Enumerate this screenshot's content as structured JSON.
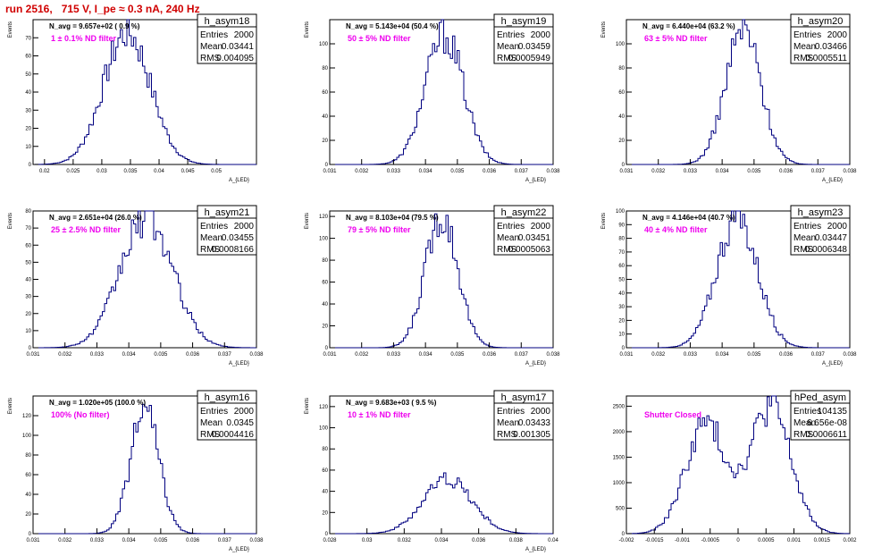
{
  "page_title": "run 2516,   715 V, I_pe ≈ 0.3 nA, 240 Hz",
  "colors": {
    "title": "#d00000",
    "annotation": "#ee00ee",
    "histogram_line": "#000080",
    "axis": "#000000",
    "background": "#ffffff"
  },
  "chart_data": [
    {
      "type": "bar",
      "name": "h_asym18",
      "stats": {
        "entries": "2000",
        "mean": "0.03441",
        "rms": "0.004095"
      },
      "n_avg_text": "N_avg = 9.657e+02 ( 0.9 %)",
      "filter_text": "1 ± 0.1% ND filter",
      "ylabel": "Events",
      "xlabel": "A_{LED}",
      "xlim": [
        0.018,
        0.057
      ],
      "ylim": [
        0,
        80
      ],
      "xticks": [
        0.02,
        0.025,
        0.03,
        0.035,
        0.04,
        0.045,
        0.05
      ],
      "xtick_labels": [
        "0.02",
        "0.025",
        "0.03",
        "0.035",
        "0.04",
        "0.045",
        "0.05"
      ],
      "yticks": [
        0,
        10,
        20,
        30,
        40,
        50,
        60,
        70
      ],
      "ytick_labels": [
        "0",
        "10",
        "20",
        "30",
        "40",
        "50",
        "60",
        "70"
      ],
      "mean": 0.03441,
      "sigma": 0.004095,
      "peak": 73
    },
    {
      "type": "bar",
      "name": "h_asym19",
      "stats": {
        "entries": "2000",
        "mean": "0.03459",
        "rms": "0.0005949"
      },
      "n_avg_text": "N_avg = 5.143e+04 (50.4 %)",
      "filter_text": "50 ± 5% ND filter",
      "ylabel": "Events",
      "xlabel": "A_{LED}",
      "xlim": [
        0.031,
        0.038
      ],
      "ylim": [
        0,
        120
      ],
      "xticks": [
        0.031,
        0.032,
        0.033,
        0.034,
        0.035,
        0.036,
        0.037,
        0.038
      ],
      "xtick_labels": [
        "0.031",
        "0.032",
        "0.033",
        "0.034",
        "0.035",
        "0.036",
        "0.037",
        "0.038"
      ],
      "yticks": [
        0,
        20,
        40,
        60,
        80,
        100
      ],
      "ytick_labels": [
        "0",
        "20",
        "40",
        "60",
        "80",
        "100"
      ],
      "mean": 0.03459,
      "sigma": 0.0005949,
      "peak": 108
    },
    {
      "type": "bar",
      "name": "h_asym20",
      "stats": {
        "entries": "2000",
        "mean": "0.03466",
        "rms": "0.0005511"
      },
      "n_avg_text": "N_avg = 6.440e+04 (63.2 %)",
      "filter_text": "63 ± 5% ND filter",
      "ylabel": "Events",
      "xlabel": "A_{LED}",
      "xlim": [
        0.031,
        0.038
      ],
      "ylim": [
        0,
        120
      ],
      "xticks": [
        0.031,
        0.032,
        0.033,
        0.034,
        0.035,
        0.036,
        0.037,
        0.038
      ],
      "xtick_labels": [
        "0.031",
        "0.032",
        "0.033",
        "0.034",
        "0.035",
        "0.036",
        "0.037",
        "0.038"
      ],
      "yticks": [
        0,
        20,
        40,
        60,
        80,
        100
      ],
      "ytick_labels": [
        "0",
        "20",
        "40",
        "60",
        "80",
        "100"
      ],
      "mean": 0.03466,
      "sigma": 0.0005511,
      "peak": 112
    },
    {
      "type": "bar",
      "name": "h_asym21",
      "stats": {
        "entries": "2000",
        "mean": "0.03455",
        "rms": "0.0008166"
      },
      "n_avg_text": "N_avg = 2.651e+04 (26.0 %)",
      "filter_text": "25 ± 2.5% ND filter",
      "ylabel": "Events",
      "xlabel": "A_{LED}",
      "xlim": [
        0.031,
        0.038
      ],
      "ylim": [
        0,
        80
      ],
      "xticks": [
        0.031,
        0.032,
        0.033,
        0.034,
        0.035,
        0.036,
        0.037,
        0.038
      ],
      "xtick_labels": [
        "0.031",
        "0.032",
        "0.033",
        "0.034",
        "0.035",
        "0.036",
        "0.037",
        "0.038"
      ],
      "yticks": [
        0,
        10,
        20,
        30,
        40,
        50,
        60,
        70,
        80
      ],
      "ytick_labels": [
        "0",
        "10",
        "20",
        "30",
        "40",
        "50",
        "60",
        "70",
        "80"
      ],
      "mean": 0.03455,
      "sigma": 0.0008166,
      "peak": 76
    },
    {
      "type": "bar",
      "name": "h_asym22",
      "stats": {
        "entries": "2000",
        "mean": "0.03451",
        "rms": "0.0005063"
      },
      "n_avg_text": "N_avg = 8.103e+04 (79.5 %)",
      "filter_text": "79 ± 5% ND filter",
      "ylabel": "Events",
      "xlabel": "A_{LED}",
      "xlim": [
        0.031,
        0.038
      ],
      "ylim": [
        0,
        125
      ],
      "xticks": [
        0.031,
        0.032,
        0.033,
        0.034,
        0.035,
        0.036,
        0.037,
        0.038
      ],
      "xtick_labels": [
        "0.031",
        "0.032",
        "0.033",
        "0.034",
        "0.035",
        "0.036",
        "0.037",
        "0.038"
      ],
      "yticks": [
        0,
        20,
        40,
        60,
        80,
        100,
        120
      ],
      "ytick_labels": [
        "0",
        "20",
        "40",
        "60",
        "80",
        "100",
        "120"
      ],
      "mean": 0.03451,
      "sigma": 0.0005063,
      "peak": 122
    },
    {
      "type": "bar",
      "name": "h_asym23",
      "stats": {
        "entries": "2000",
        "mean": "0.03447",
        "rms": "0.0006348"
      },
      "n_avg_text": "N_avg = 4.146e+04 (40.7 %)",
      "filter_text": "40 ± 4% ND filter",
      "ylabel": "Events",
      "xlabel": "A_{LED}",
      "xlim": [
        0.031,
        0.038
      ],
      "ylim": [
        0,
        100
      ],
      "xticks": [
        0.031,
        0.032,
        0.033,
        0.034,
        0.035,
        0.036,
        0.037,
        0.038
      ],
      "xtick_labels": [
        "0.031",
        "0.032",
        "0.033",
        "0.034",
        "0.035",
        "0.036",
        "0.037",
        "0.038"
      ],
      "yticks": [
        0,
        10,
        20,
        30,
        40,
        50,
        60,
        70,
        80,
        90,
        100
      ],
      "ytick_labels": [
        "0",
        "10",
        "20",
        "30",
        "40",
        "50",
        "60",
        "70",
        "80",
        "90",
        "100"
      ],
      "mean": 0.03447,
      "sigma": 0.0006348,
      "peak": 96
    },
    {
      "type": "bar",
      "name": "h_asym16",
      "stats": {
        "entries": "2000",
        "mean": "0.0345",
        "rms": "0.0004416"
      },
      "n_avg_text": "N_avg = 1.020e+05 (100.0 %)",
      "filter_text": "100% (No filter)",
      "ylabel": "Events",
      "xlabel": "A_{LED}",
      "xlim": [
        0.031,
        0.038
      ],
      "ylim": [
        0,
        140
      ],
      "xticks": [
        0.031,
        0.032,
        0.033,
        0.034,
        0.035,
        0.036,
        0.037,
        0.038
      ],
      "xtick_labels": [
        "0.031",
        "0.032",
        "0.033",
        "0.034",
        "0.035",
        "0.036",
        "0.037",
        "0.038"
      ],
      "yticks": [
        0,
        20,
        40,
        60,
        80,
        100,
        120
      ],
      "ytick_labels": [
        "0",
        "20",
        "40",
        "60",
        "80",
        "100",
        "120"
      ],
      "mean": 0.0345,
      "sigma": 0.0004416,
      "peak": 126
    },
    {
      "type": "bar",
      "name": "h_asym17",
      "stats": {
        "entries": "2000",
        "mean": "0.03433",
        "rms": "0.001305"
      },
      "n_avg_text": "N_avg = 9.683e+03 ( 9.5 %)",
      "filter_text": "10 ± 1% ND filter",
      "ylabel": "Events",
      "xlabel": "A_{LED}",
      "xlim": [
        0.028,
        0.04
      ],
      "ylim": [
        0,
        130
      ],
      "xticks": [
        0.028,
        0.03,
        0.032,
        0.034,
        0.036,
        0.038,
        0.04
      ],
      "xtick_labels": [
        "0.028",
        "0.03",
        "0.032",
        "0.034",
        "0.036",
        "0.038",
        "0.04"
      ],
      "yticks": [
        0,
        20,
        40,
        60,
        80,
        100,
        120
      ],
      "ytick_labels": [
        "0",
        "20",
        "40",
        "60",
        "80",
        "100",
        "120"
      ],
      "mean": 0.03433,
      "sigma": 0.001305,
      "peak": 52
    },
    {
      "type": "bar",
      "name": "hPed_asym",
      "stats": {
        "entries": "104135",
        "mean": "6.656e-08",
        "rms": "0.0006611"
      },
      "filter_text": "Shutter Closed",
      "ylabel": "",
      "xlabel": "",
      "xlim": [
        -0.002,
        0.002
      ],
      "ylim": [
        0,
        2700
      ],
      "xticks": [
        -0.002,
        -0.0015,
        -0.001,
        -0.0005,
        0,
        0.0005,
        0.001,
        0.0015,
        0.002
      ],
      "xtick_labels": [
        "-0.002",
        "-0.0015",
        "-0.001",
        "-0.0005",
        "0",
        "0.0005",
        "0.001",
        "0.0015",
        "0.002"
      ],
      "yticks": [
        0,
        500,
        1000,
        1500,
        2000,
        2500
      ],
      "ytick_labels": [
        "0",
        "500",
        "1000",
        "1500",
        "2000",
        "2500"
      ],
      "double_peak": [
        {
          "mean": -0.00058,
          "sigma": 0.00036,
          "peak": 2150
        },
        {
          "mean": 0.00058,
          "sigma": 0.00036,
          "peak": 2500
        }
      ]
    }
  ]
}
